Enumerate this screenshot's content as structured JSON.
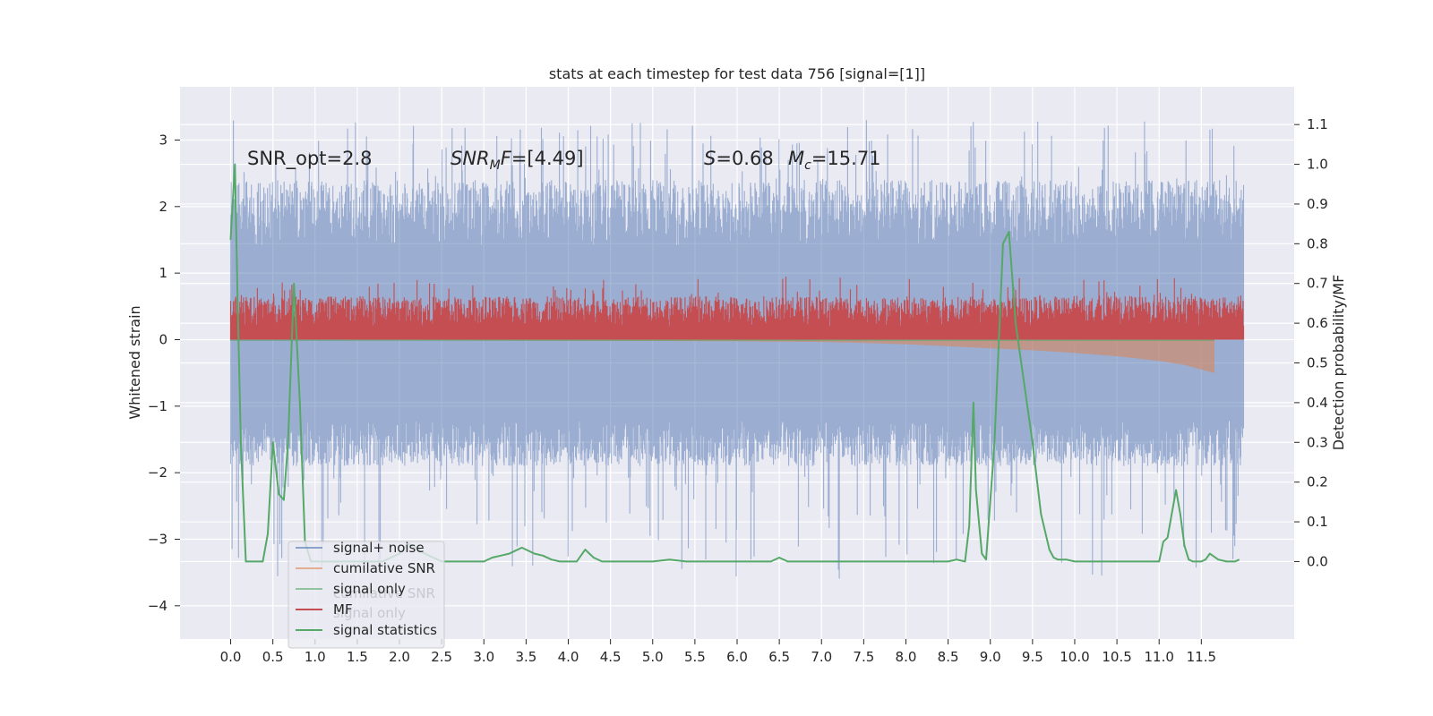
{
  "chart_data": {
    "type": "line",
    "title": "stats at each timestep for test data 756 [signal=[1]]",
    "xlabel": "",
    "ylabel": "Whitened strain",
    "y2label": "Detection probability/MF",
    "xlim": [
      -0.6,
      12.6
    ],
    "ylim": [
      -4.5,
      3.8
    ],
    "y2lim": [
      -0.195,
      1.195
    ],
    "x_ticks": [
      0.0,
      0.5,
      1.0,
      1.5,
      2.0,
      2.5,
      3.0,
      3.5,
      4.0,
      4.5,
      5.0,
      5.5,
      6.0,
      6.5,
      7.0,
      7.5,
      8.0,
      8.5,
      9.0,
      9.5,
      10.0,
      10.5,
      11.0,
      11.5
    ],
    "x_tick_labels": [
      "0.0",
      "0.5",
      "1.0",
      "1.5",
      "2.0",
      "2.5",
      "3.0",
      "3.5",
      "4.0",
      "4.5",
      "5.0",
      "5.5",
      "6.0",
      "6.5",
      "7.0",
      "7.5",
      "8.0",
      "8.5",
      "9.0",
      "9.5",
      "10.0",
      "10.5",
      "11.0",
      "11.5"
    ],
    "y_ticks": [
      3,
      2,
      1,
      0,
      -1,
      -2,
      -3,
      -4
    ],
    "y_tick_labels": [
      "3",
      "2",
      "1",
      "0",
      "−1",
      "−2",
      "−3",
      "−4"
    ],
    "y2_ticks": [
      1.1,
      1.0,
      0.9,
      0.8,
      0.7,
      0.6,
      0.5,
      0.4,
      0.3,
      0.2,
      0.1,
      0.0
    ],
    "y2_tick_labels": [
      "1.1",
      "1.0",
      "0.9",
      "0.8",
      "0.7",
      "0.6",
      "0.5",
      "0.4",
      "0.3",
      "0.2",
      "0.1",
      "0.0"
    ],
    "grid": true,
    "legend_position": "bottom-left",
    "annotations": {
      "snr_opt": "SNR_opt=2.8",
      "snr_mf_label": "SNR",
      "snr_mf_sub": "M",
      "snr_mf_rest": "F=[4.49]",
      "s_label": "S",
      "s_value": "=0.68",
      "mc_label": "M",
      "mc_sub": "c",
      "mc_value": "=15.71"
    },
    "series": [
      {
        "name": "signal+ noise",
        "color": "#4c72b0",
        "axis": "left",
        "x_range": [
          0.0,
          12.0
        ],
        "envelope": [
          -2.0,
          3.3
        ],
        "typical": [
          -1.2,
          1.4
        ]
      },
      {
        "name": "cumilative SNR",
        "color": "#dd8452",
        "axis": "left",
        "x": [
          0.0,
          1,
          2,
          3,
          4,
          5,
          6,
          7,
          7.5,
          8,
          8.5,
          9,
          9.5,
          10,
          10.5,
          11,
          11.3,
          11.65
        ],
        "values": [
          0.0,
          0.0,
          -0.005,
          -0.01,
          -0.015,
          -0.02,
          -0.025,
          -0.035,
          -0.05,
          -0.07,
          -0.1,
          -0.13,
          -0.16,
          -0.2,
          -0.25,
          -0.32,
          -0.38,
          -0.5
        ]
      },
      {
        "name": "signal only",
        "color": "#55a868",
        "axis": "left",
        "x": [
          0.0,
          7.0,
          7.5,
          8,
          8.5,
          9,
          9.5,
          10,
          10.5,
          11,
          11.5,
          11.65
        ],
        "values": [
          0.03,
          0.04,
          0.05,
          0.06,
          0.07,
          0.08,
          0.09,
          0.1,
          0.12,
          0.16,
          0.22,
          0.25
        ]
      },
      {
        "name": "MF",
        "color": "#c44e52",
        "axis": "left",
        "x_range": [
          0.0,
          12.0
        ],
        "base": 0.0,
        "typical_top": [
          0.2,
          0.65
        ],
        "peak": 1.0
      },
      {
        "name": "signal statistics",
        "color": "#55a868",
        "axis": "right",
        "x": [
          0.0,
          0.05,
          0.08,
          0.12,
          0.18,
          0.3,
          0.38,
          0.44,
          0.5,
          0.57,
          0.63,
          0.68,
          0.75,
          0.82,
          0.88,
          0.95,
          1.2,
          1.5,
          1.8,
          2.0,
          2.1,
          2.2,
          2.3,
          2.5,
          2.8,
          3.0,
          3.1,
          3.2,
          3.3,
          3.35,
          3.45,
          3.5,
          3.6,
          3.7,
          3.8,
          3.9,
          4.0,
          4.1,
          4.2,
          4.3,
          4.4,
          4.6,
          4.8,
          5.0,
          5.2,
          5.4,
          5.6,
          5.8,
          6.0,
          6.2,
          6.4,
          6.5,
          6.6,
          6.8,
          7.0,
          7.5,
          8.0,
          8.5,
          8.6,
          8.7,
          8.75,
          8.8,
          8.83,
          8.9,
          8.95,
          9.05,
          9.15,
          9.22,
          9.3,
          9.5,
          9.6,
          9.7,
          9.75,
          9.8,
          9.9,
          10.0,
          10.2,
          10.5,
          11.0,
          11.05,
          11.1,
          11.15,
          11.2,
          11.25,
          11.3,
          11.35,
          11.4,
          11.45,
          11.5,
          11.55,
          11.6,
          11.7,
          11.8,
          11.9,
          11.95
        ],
        "values": [
          0.81,
          1.0,
          0.68,
          0.3,
          0.0,
          0.0,
          0.0,
          0.07,
          0.3,
          0.17,
          0.155,
          0.3,
          0.7,
          0.4,
          0.05,
          0.0,
          0.0,
          0.0,
          0.0,
          0.02,
          0.045,
          0.035,
          0.02,
          0.0,
          0.0,
          0.0,
          0.01,
          0.015,
          0.02,
          0.025,
          0.035,
          0.03,
          0.02,
          0.015,
          0.005,
          0.0,
          0.0,
          0.0,
          0.03,
          0.01,
          0.0,
          0.0,
          0.0,
          0.0,
          0.005,
          0.0,
          0.0,
          0.0,
          0.0,
          0.0,
          0.0,
          0.01,
          0.0,
          0.0,
          0.0,
          0.0,
          0.0,
          0.0,
          0.005,
          0.0,
          0.09,
          0.4,
          0.18,
          0.02,
          0.005,
          0.3,
          0.8,
          0.83,
          0.6,
          0.3,
          0.12,
          0.03,
          0.01,
          0.005,
          0.005,
          0.0,
          0.0,
          0.0,
          0.0,
          0.05,
          0.06,
          0.12,
          0.18,
          0.12,
          0.04,
          0.005,
          0.0,
          0.0,
          0.0,
          0.005,
          0.02,
          0.005,
          0.0,
          0.0,
          0.005
        ]
      }
    ]
  },
  "legend": {
    "items": [
      {
        "label": "signal+ noise",
        "color": "#4c72b0"
      },
      {
        "label": "cumilative SNR",
        "color": "#dd8452"
      },
      {
        "label": "signal only",
        "color": "#55a868"
      },
      {
        "label": "MF",
        "color": "#c44e52"
      },
      {
        "label": "signal statistics",
        "color": "#55a868"
      }
    ],
    "ghost_items": [
      "cumilative SNR",
      "signal only"
    ]
  },
  "colors": {
    "plot_background": "#eaeaf2",
    "grid": "#ffffff"
  }
}
